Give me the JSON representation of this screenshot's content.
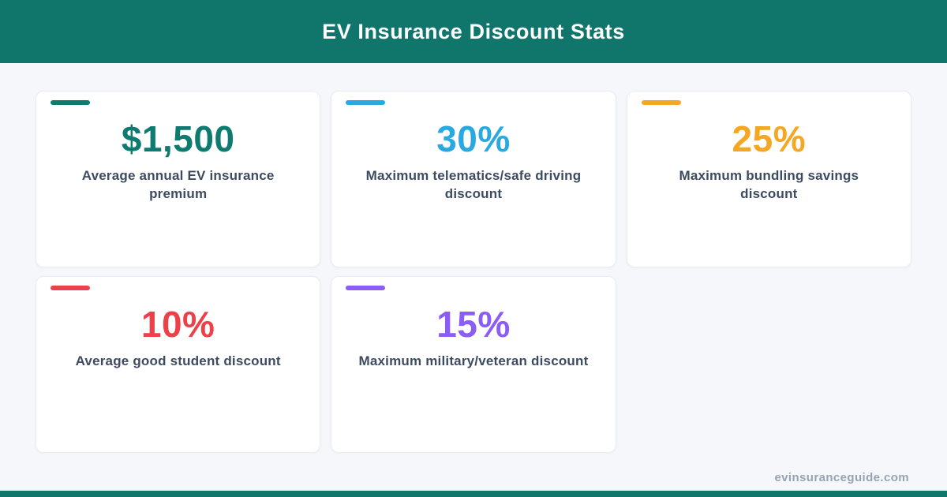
{
  "header": {
    "title": "EV Insurance Discount Stats",
    "bg_color": "#10766b"
  },
  "cards": [
    {
      "value": "$1,500",
      "label": "Average annual EV insurance premium",
      "accent_color": "#0e7b71"
    },
    {
      "value": "30%",
      "label": "Maximum telematics/safe driving discount",
      "accent_color": "#29a9e1"
    },
    {
      "value": "25%",
      "label": "Maximum bundling savings discount",
      "accent_color": "#f5a623"
    },
    {
      "value": "10%",
      "label": "Average good student discount",
      "accent_color": "#ee4048"
    },
    {
      "value": "15%",
      "label": "Maximum military/veteran discount",
      "accent_color": "#8b5cf6"
    }
  ],
  "footer": {
    "site": "evinsuranceguide.com"
  },
  "chart_data": {
    "type": "table",
    "title": "EV Insurance Discount Stats",
    "categories": [
      "Average annual EV insurance premium",
      "Maximum telematics/safe driving discount",
      "Maximum bundling savings discount",
      "Average good student discount",
      "Maximum military/veteran discount"
    ],
    "values": [
      "$1,500",
      "30%",
      "25%",
      "10%",
      "15%"
    ],
    "numeric_values": [
      1500,
      30,
      25,
      10,
      15
    ],
    "units": [
      "USD",
      "%",
      "%",
      "%",
      "%"
    ],
    "accent_colors": [
      "#0e7b71",
      "#29a9e1",
      "#f5a623",
      "#ee4048",
      "#8b5cf6"
    ],
    "legend_position": "none",
    "grid": false
  }
}
